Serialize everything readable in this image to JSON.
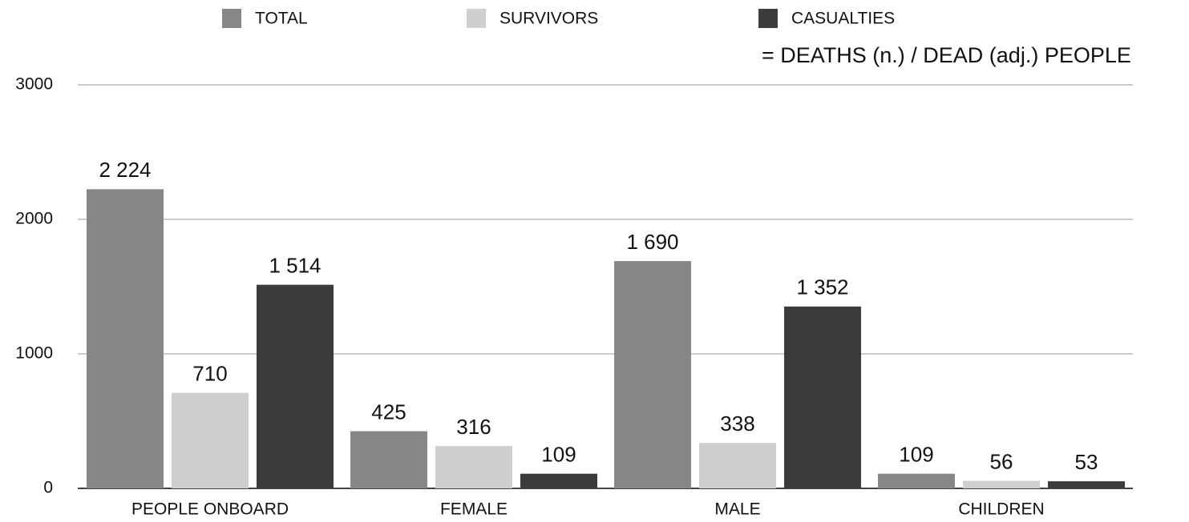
{
  "chart_data": {
    "type": "bar",
    "annotation": "= DEATHS (n.) / DEAD (adj.) PEOPLE",
    "categories": [
      "PEOPLE ONBOARD",
      "FEMALE",
      "MALE",
      "CHILDREN"
    ],
    "series": [
      {
        "name": "TOTAL",
        "color": "#878787",
        "values": [
          2224,
          425,
          1690,
          109
        ],
        "value_labels": [
          "2 224",
          "425",
          "1 690",
          "109"
        ]
      },
      {
        "name": "SURVIVORS",
        "color": "#cfcfcf",
        "values": [
          710,
          316,
          338,
          56
        ],
        "value_labels": [
          "710",
          "316",
          "338",
          "56"
        ]
      },
      {
        "name": "CASUALTIES",
        "color": "#3c3c3c",
        "values": [
          1514,
          109,
          1352,
          53
        ],
        "value_labels": [
          "1 514",
          "109",
          "1 352",
          "53"
        ]
      }
    ],
    "ylim": [
      0,
      3000
    ],
    "yticks": [
      0,
      1000,
      2000,
      3000
    ],
    "grid": true
  }
}
